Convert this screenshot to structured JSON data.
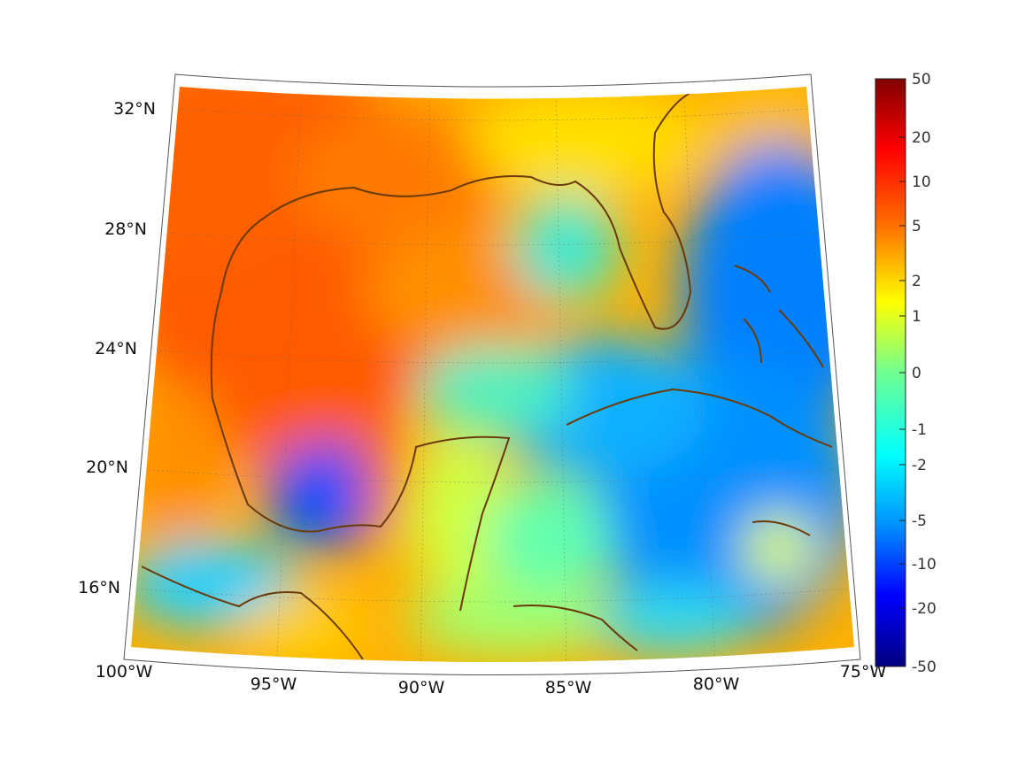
{
  "chart_data": {
    "type": "heatmap",
    "title": "",
    "projection": "Lambert conic, Gulf of Mexico / Caribbean region",
    "lat_ticks": [
      "32°N",
      "28°N",
      "24°N",
      "20°N",
      "16°N"
    ],
    "lon_ticks": [
      "100°W",
      "95°W",
      "90°W",
      "85°W",
      "80°W",
      "75°W"
    ],
    "lat_range": [
      14,
      33
    ],
    "lon_range": [
      -100,
      -75
    ],
    "colorbar": {
      "colormap": "jet",
      "ticks": [
        "50",
        "20",
        "10",
        "5",
        "2",
        "1",
        "0",
        "-1",
        "-2",
        "-5",
        "-10",
        "-20",
        "-50"
      ],
      "range": [
        -50,
        50
      ],
      "scale": "symmetric-log"
    },
    "field_summary": [
      {
        "region": "Western/northern Gulf of Mexico",
        "approx_value": 5
      },
      {
        "region": "Eastern Gulf / Florida",
        "approx_value": 1
      },
      {
        "region": "Bay of Campeche",
        "approx_value": -5
      },
      {
        "region": "Caribbean / Atlantic east",
        "approx_value": -3
      },
      {
        "region": "Yucatan / Central America",
        "approx_value": 0.5
      }
    ],
    "coastline_color": "#6b3a0a"
  }
}
